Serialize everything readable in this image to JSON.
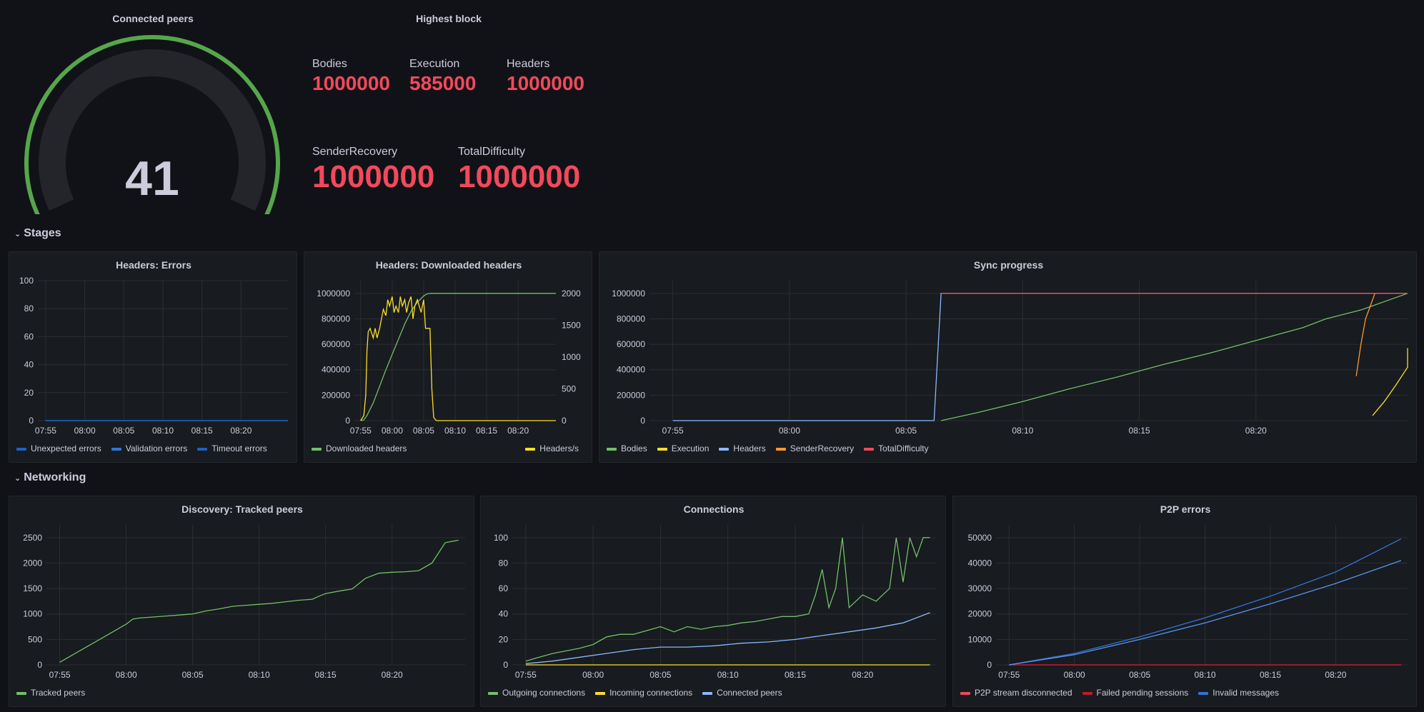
{
  "gauge": {
    "title": "Connected peers",
    "value": "41",
    "value_num": 41,
    "max": 41,
    "color": "#56a64b"
  },
  "highest_block": {
    "title": "Highest block",
    "items": [
      {
        "label": "Bodies",
        "value": "1000000"
      },
      {
        "label": "Execution",
        "value": "585000"
      },
      {
        "label": "Headers",
        "value": "1000000"
      },
      {
        "label": "SenderRecovery",
        "value": "1000000"
      },
      {
        "label": "TotalDifficulty",
        "value": "1000000"
      }
    ],
    "color": "#f2495c"
  },
  "rows": {
    "stages": "Stages",
    "networking": "Networking"
  },
  "panels": {
    "headers_errors": {
      "title": "Headers: Errors"
    },
    "downloaded_headers": {
      "title": "Headers: Downloaded headers"
    },
    "sync_progress": {
      "title": "Sync progress"
    },
    "tracked_peers": {
      "title": "Discovery: Tracked peers"
    },
    "connections": {
      "title": "Connections"
    },
    "p2p_errors": {
      "title": "P2P errors"
    }
  },
  "chart_data": [
    {
      "id": "headers_errors",
      "type": "line",
      "title": "Headers: Errors",
      "x_ticks": [
        "07:55",
        "08:00",
        "08:05",
        "08:10",
        "08:15",
        "08:20"
      ],
      "y_ticks": [
        "0",
        "20",
        "40",
        "60",
        "80",
        "100"
      ],
      "ylim": [
        0,
        100
      ],
      "xlim_minutes": [
        -1,
        31
      ],
      "series": [
        {
          "name": "Unexpected errors",
          "color": "#1f60c4",
          "x": [
            0,
            31
          ],
          "y": [
            0,
            0
          ]
        },
        {
          "name": "Validation errors",
          "color": "#3274d9",
          "x": [
            0,
            31
          ],
          "y": [
            0,
            0
          ]
        },
        {
          "name": "Timeout errors",
          "color": "#1f60c4",
          "x": [
            0,
            31
          ],
          "y": [
            0,
            0
          ]
        }
      ]
    },
    {
      "id": "downloaded_headers",
      "type": "line",
      "title": "Headers: Downloaded headers",
      "x_ticks": [
        "07:55",
        "08:00",
        "08:05",
        "08:10",
        "08:15",
        "08:20"
      ],
      "y_ticks": [
        "0",
        "200000",
        "400000",
        "600000",
        "800000",
        "1000000"
      ],
      "y2_ticks": [
        "0",
        "500",
        "1000",
        "1500",
        "2000"
      ],
      "ylim": [
        0,
        1100000
      ],
      "y2lim": [
        0,
        2200
      ],
      "xlim_minutes": [
        -1,
        31
      ],
      "series": [
        {
          "name": "Downloaded headers",
          "color": "#73bf69",
          "axis": "left",
          "x": [
            0,
            0.5,
            1,
            2,
            3,
            4,
            5,
            6,
            7,
            8,
            9,
            10,
            10.5,
            11,
            31
          ],
          "y": [
            0,
            5000,
            40000,
            140000,
            270000,
            400000,
            520000,
            640000,
            760000,
            860000,
            930000,
            980000,
            995000,
            1000000,
            1000000
          ]
        },
        {
          "name": "Headers/s",
          "color": "#fade2a",
          "axis": "right",
          "x": [
            0,
            0.5,
            0.8,
            1.0,
            1.2,
            1.5,
            2,
            2.3,
            2.6,
            3,
            3.3,
            3.6,
            4,
            4.3,
            4.6,
            5,
            5.3,
            5.6,
            6,
            6.3,
            6.6,
            7,
            7.3,
            7.6,
            8,
            8.3,
            8.6,
            9,
            9.3,
            9.6,
            10,
            10.3,
            10.6,
            11,
            11.3,
            11.6,
            12,
            31
          ],
          "y": [
            0,
            80,
            400,
            1100,
            1400,
            1450,
            1300,
            1450,
            1300,
            1450,
            1600,
            1750,
            1650,
            1900,
            1800,
            1950,
            1700,
            1800,
            1700,
            1950,
            1800,
            1900,
            1700,
            1850,
            1950,
            1600,
            1800,
            1900,
            1800,
            1700,
            1900,
            1450,
            1450,
            1450,
            500,
            50,
            0,
            0
          ]
        }
      ]
    },
    {
      "id": "sync_progress",
      "type": "line",
      "title": "Sync progress",
      "x_ticks": [
        "07:55",
        "08:00",
        "08:05",
        "08:10",
        "08:15",
        "08:20"
      ],
      "y_ticks": [
        "0",
        "200000",
        "400000",
        "600000",
        "800000",
        "1000000"
      ],
      "ylim": [
        0,
        1100000
      ],
      "xlim_minutes": [
        -1,
        31.5
      ],
      "series": [
        {
          "name": "Bodies",
          "color": "#73bf69",
          "x": [
            11.5,
            13,
            15,
            17,
            19,
            21,
            23,
            25,
            27,
            28,
            29.5,
            31.5
          ],
          "y": [
            0,
            60000,
            150000,
            250000,
            340000,
            440000,
            530000,
            630000,
            730000,
            800000,
            870000,
            1000000
          ]
        },
        {
          "name": "Execution",
          "color": "#fade2a",
          "x": [
            30,
            30.5,
            31,
            31.5,
            32
          ],
          "y": [
            40000,
            150000,
            280000,
            420000,
            570000
          ]
        },
        {
          "name": "Headers",
          "color": "#8ab8ff",
          "x": [
            0,
            11.2,
            11.5,
            31.5
          ],
          "y": [
            0,
            0,
            1000000,
            1000000
          ]
        },
        {
          "name": "SenderRecovery",
          "color": "#ff9830",
          "x": [
            29.3,
            29.5,
            29.7,
            29.9,
            30.1
          ],
          "y": [
            350000,
            600000,
            800000,
            900000,
            1000000
          ]
        },
        {
          "name": "TotalDifficulty",
          "color": "#f2495c",
          "x": [
            11.5,
            31.5
          ],
          "y": [
            1000000,
            1000000
          ]
        }
      ]
    },
    {
      "id": "tracked_peers",
      "type": "line",
      "title": "Discovery: Tracked peers",
      "x_ticks": [
        "07:55",
        "08:00",
        "08:05",
        "08:10",
        "08:15",
        "08:20"
      ],
      "y_ticks": [
        "0",
        "500",
        "1000",
        "1500",
        "2000",
        "2500"
      ],
      "ylim": [
        0,
        2750
      ],
      "xlim_minutes": [
        -1,
        30.5
      ],
      "series": [
        {
          "name": "Tracked peers",
          "color": "#73bf69",
          "x": [
            0,
            1,
            2,
            3,
            4,
            5,
            5.5,
            6,
            7,
            8,
            9,
            10,
            11,
            12,
            13,
            14,
            15,
            16,
            17,
            18,
            19,
            19.5,
            20,
            21,
            22,
            23,
            24,
            25,
            26,
            27,
            28,
            29,
            30
          ],
          "y": [
            50,
            200,
            350,
            500,
            650,
            800,
            900,
            920,
            940,
            960,
            980,
            1000,
            1060,
            1100,
            1150,
            1170,
            1190,
            1210,
            1240,
            1270,
            1290,
            1350,
            1400,
            1450,
            1490,
            1700,
            1800,
            1820,
            1830,
            1850,
            2000,
            2400,
            2450
          ]
        }
      ]
    },
    {
      "id": "connections",
      "type": "line",
      "title": "Connections",
      "x_ticks": [
        "07:55",
        "08:00",
        "08:05",
        "08:10",
        "08:15",
        "08:20"
      ],
      "y_ticks": [
        "0",
        "20",
        "40",
        "60",
        "80",
        "100"
      ],
      "ylim": [
        0,
        110
      ],
      "xlim_minutes": [
        -1,
        30.5
      ],
      "series": [
        {
          "name": "Outgoing connections",
          "color": "#73bf69",
          "x": [
            0,
            1,
            2,
            3,
            4,
            5,
            6,
            7,
            8,
            9,
            10,
            11,
            12,
            13,
            14,
            15,
            16,
            17,
            18,
            19,
            20,
            21,
            21.5,
            22,
            22.5,
            23,
            23.5,
            24,
            25,
            26,
            27,
            27.5,
            28,
            28.5,
            29,
            29.5,
            30
          ],
          "y": [
            3,
            6,
            9,
            11,
            13,
            16,
            22,
            24,
            24,
            27,
            30,
            26,
            30,
            28,
            30,
            31,
            33,
            34,
            36,
            38,
            38,
            40,
            55,
            75,
            45,
            60,
            100,
            45,
            55,
            50,
            60,
            100,
            65,
            100,
            85,
            100,
            100
          ]
        },
        {
          "name": "Incoming connections",
          "color": "#fade2a",
          "x": [
            0,
            30
          ],
          "y": [
            0,
            0
          ]
        },
        {
          "name": "Connected peers",
          "color": "#8ab8ff",
          "x": [
            0,
            2,
            4,
            6,
            8,
            10,
            12,
            14,
            16,
            18,
            20,
            22,
            24,
            26,
            28,
            30
          ],
          "y": [
            1,
            3,
            6,
            9,
            12,
            14,
            14,
            15,
            17,
            18,
            20,
            23,
            26,
            29,
            33,
            41
          ]
        }
      ]
    },
    {
      "id": "p2p_errors",
      "type": "line",
      "title": "P2P errors",
      "x_ticks": [
        "07:55",
        "08:00",
        "08:05",
        "08:10",
        "08:15",
        "08:20"
      ],
      "y_ticks": [
        "0",
        "10000",
        "20000",
        "30000",
        "40000",
        "50000"
      ],
      "ylim": [
        0,
        55000
      ],
      "xlim_minutes": [
        -1,
        30.5
      ],
      "series": [
        {
          "name": "P2P stream disconnected",
          "color": "#f2495c",
          "x": [
            0,
            30
          ],
          "y": [
            0,
            0
          ]
        },
        {
          "name": "Failed pending sessions",
          "color": "#c4162a",
          "x": [
            0,
            30
          ],
          "y": [
            0,
            0
          ]
        },
        {
          "name": "Invalid messages",
          "color": "#3274d9",
          "x": [
            0,
            5,
            10,
            15,
            20,
            25,
            30
          ],
          "y": [
            0,
            4500,
            11000,
            18500,
            27000,
            36500,
            49500
          ]
        },
        {
          "name": "Invalid messages",
          "color": "#5794f2",
          "x": [
            0,
            5,
            10,
            15,
            20,
            25,
            30
          ],
          "y": [
            0,
            4000,
            10000,
            16500,
            24000,
            32000,
            41000
          ]
        }
      ]
    }
  ]
}
